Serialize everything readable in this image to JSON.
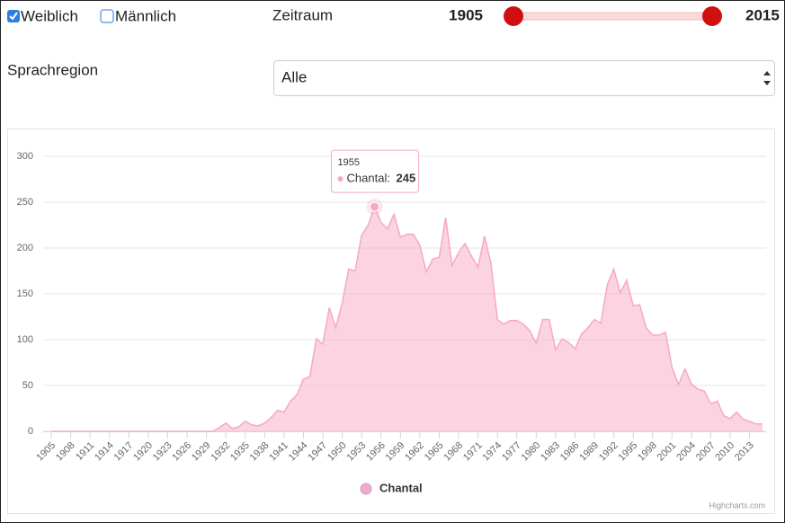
{
  "filters": {
    "checkboxes": [
      {
        "label": "Weiblich",
        "checked": true
      },
      {
        "label": "Männlich",
        "checked": false
      }
    ],
    "range": {
      "label": "Zeitraum",
      "min": 1905,
      "max": 2015
    },
    "select": {
      "label": "Sprachregion",
      "value": "Alle"
    }
  },
  "chart_data": {
    "type": "area",
    "x": [
      1905,
      1906,
      1907,
      1908,
      1909,
      1910,
      1911,
      1912,
      1913,
      1914,
      1915,
      1916,
      1917,
      1918,
      1919,
      1920,
      1921,
      1922,
      1923,
      1924,
      1925,
      1926,
      1927,
      1928,
      1929,
      1930,
      1931,
      1932,
      1933,
      1934,
      1935,
      1936,
      1937,
      1938,
      1939,
      1940,
      1941,
      1942,
      1943,
      1944,
      1945,
      1946,
      1947,
      1948,
      1949,
      1950,
      1951,
      1952,
      1953,
      1954,
      1955,
      1956,
      1957,
      1958,
      1959,
      1960,
      1961,
      1962,
      1963,
      1964,
      1965,
      1966,
      1967,
      1968,
      1969,
      1970,
      1971,
      1972,
      1973,
      1974,
      1975,
      1976,
      1977,
      1978,
      1979,
      1980,
      1981,
      1982,
      1983,
      1984,
      1985,
      1986,
      1987,
      1988,
      1989,
      1990,
      1991,
      1992,
      1993,
      1994,
      1995,
      1996,
      1997,
      1998,
      1999,
      2000,
      2001,
      2002,
      2003,
      2004,
      2005,
      2006,
      2007,
      2008,
      2009,
      2010,
      2011,
      2012,
      2013,
      2014,
      2015
    ],
    "series": [
      {
        "name": "Chantal",
        "color": "#f7a8c4",
        "values": [
          0,
          0,
          0,
          0,
          0,
          0,
          0,
          0,
          0,
          0,
          0,
          0,
          0,
          0,
          0,
          0,
          0,
          0,
          0,
          0,
          0,
          0,
          0,
          0,
          0,
          0,
          4,
          9,
          3,
          5,
          11,
          7,
          6,
          9,
          15,
          23,
          21,
          33,
          40,
          57,
          60,
          101,
          95,
          135,
          113,
          140,
          177,
          175,
          214,
          225,
          245,
          228,
          221,
          237,
          212,
          215,
          215,
          203,
          174,
          188,
          190,
          233,
          181,
          195,
          205,
          191,
          179,
          213,
          183,
          122,
          117,
          121,
          121,
          117,
          110,
          96,
          122,
          122,
          89,
          101,
          97,
          90,
          106,
          113,
          122,
          118,
          160,
          177,
          151,
          165,
          137,
          138,
          113,
          105,
          105,
          108,
          70,
          51,
          68,
          52,
          46,
          44,
          30,
          33,
          17,
          14,
          21,
          13,
          11,
          8,
          8
        ]
      }
    ],
    "xlim": [
      1905,
      2015
    ],
    "xticks": [
      1905,
      1908,
      1911,
      1914,
      1917,
      1920,
      1923,
      1926,
      1929,
      1932,
      1935,
      1938,
      1941,
      1944,
      1947,
      1950,
      1953,
      1956,
      1959,
      1962,
      1965,
      1968,
      1971,
      1974,
      1977,
      1980,
      1983,
      1986,
      1989,
      1992,
      1995,
      1998,
      2001,
      2004,
      2007,
      2010,
      2013
    ],
    "ylim": [
      0,
      300
    ],
    "yticks": [
      0,
      50,
      100,
      150,
      200,
      250,
      300
    ],
    "grid": true,
    "tooltip": {
      "header": "1955",
      "label": "Chantal:",
      "value": 245
    },
    "credits": "Highcharts.com"
  }
}
